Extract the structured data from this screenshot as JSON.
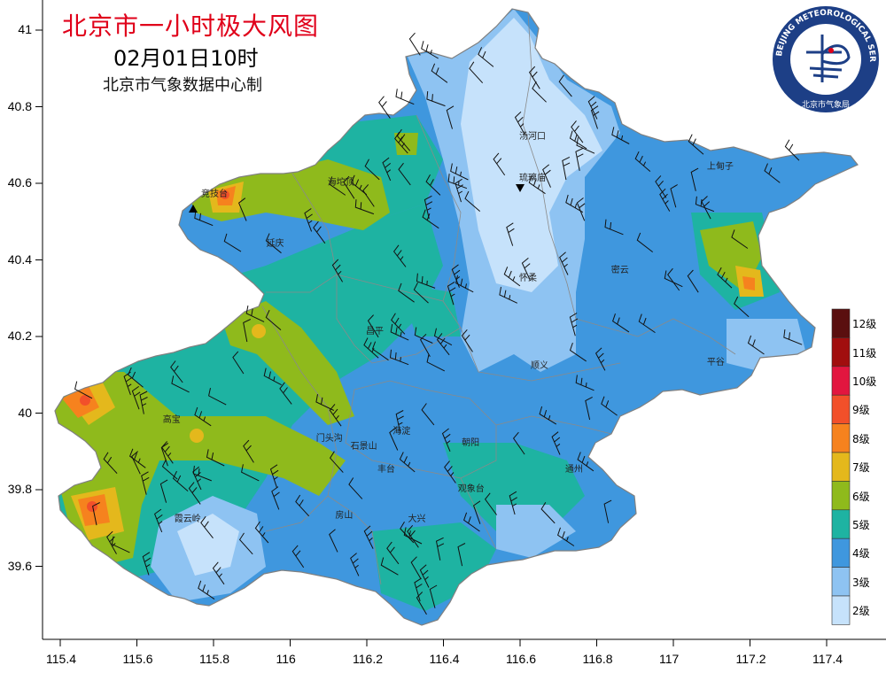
{
  "title": {
    "main": "北京市一小时极大风图",
    "time": "02月01日10时",
    "source": "北京市气象数据中心制"
  },
  "logo": {
    "text": "BEIJING METEOROLOGICAL SERVICE",
    "subtext": "北京市气象局"
  },
  "axes": {
    "x_ticks": [
      "115.4",
      "115.6",
      "115.8",
      "116",
      "116.2",
      "116.4",
      "116.6",
      "116.8",
      "117",
      "117.2",
      "117.4"
    ],
    "y_ticks": [
      "41",
      "40.8",
      "40.6",
      "40.4",
      "40.2",
      "40",
      "39.8",
      "39.6"
    ]
  },
  "legend": {
    "levels": [
      {
        "label": "12级",
        "color": "#5a0f0f"
      },
      {
        "label": "11级",
        "color": "#a10e0e"
      },
      {
        "label": "10级",
        "color": "#e2163f"
      },
      {
        "label": "9级",
        "color": "#f2502a"
      },
      {
        "label": "8级",
        "color": "#f6821e"
      },
      {
        "label": "7级",
        "color": "#e4b81c"
      },
      {
        "label": "6级",
        "color": "#8fba1c"
      },
      {
        "label": "5级",
        "color": "#1eb3a2"
      },
      {
        "label": "4级",
        "color": "#3f97de"
      },
      {
        "label": "3级",
        "color": "#8ec3f2"
      },
      {
        "label": "2级",
        "color": "#c6e2fb"
      }
    ]
  },
  "places": [
    {
      "name": "汤河口",
      "lon": 116.63,
      "lat": 40.73
    },
    {
      "name": "琉璃庙",
      "lon": 116.63,
      "lat": 40.62
    },
    {
      "name": "上甸子",
      "lon": 117.12,
      "lat": 40.65
    },
    {
      "name": "竞技台",
      "lon": 115.8,
      "lat": 40.58
    },
    {
      "name": "海坨顶",
      "lon": 116.13,
      "lat": 40.61
    },
    {
      "name": "延庆",
      "lon": 115.97,
      "lat": 40.45
    },
    {
      "name": "密云",
      "lon": 116.87,
      "lat": 40.38
    },
    {
      "name": "怀柔",
      "lon": 116.63,
      "lat": 40.36
    },
    {
      "name": "昌平",
      "lon": 116.23,
      "lat": 40.22
    },
    {
      "name": "平谷",
      "lon": 117.12,
      "lat": 40.14
    },
    {
      "name": "顺义",
      "lon": 116.66,
      "lat": 40.13
    },
    {
      "name": "海淀",
      "lon": 116.3,
      "lat": 39.96
    },
    {
      "name": "朝阳",
      "lon": 116.48,
      "lat": 39.93
    },
    {
      "name": "石景山",
      "lon": 116.19,
      "lat": 39.92
    },
    {
      "name": "门头沟",
      "lon": 116.1,
      "lat": 39.94
    },
    {
      "name": "丰台",
      "lon": 116.26,
      "lat": 39.86
    },
    {
      "name": "高宝",
      "lon": 115.7,
      "lat": 39.99
    },
    {
      "name": "通州",
      "lon": 116.75,
      "lat": 39.86
    },
    {
      "name": "观象台",
      "lon": 116.47,
      "lat": 39.81
    },
    {
      "name": "房山",
      "lon": 116.15,
      "lat": 39.74
    },
    {
      "name": "霞云岭",
      "lon": 115.73,
      "lat": 39.73
    },
    {
      "name": "大兴",
      "lon": 116.34,
      "lat": 39.73
    }
  ],
  "markers": [
    {
      "name": "竞技台",
      "shape": "up-triangle",
      "lon": 115.8,
      "lat": 40.57
    },
    {
      "name": "琉璃庙",
      "shape": "down-triangle",
      "lon": 116.63,
      "lat": 40.59
    }
  ]
}
